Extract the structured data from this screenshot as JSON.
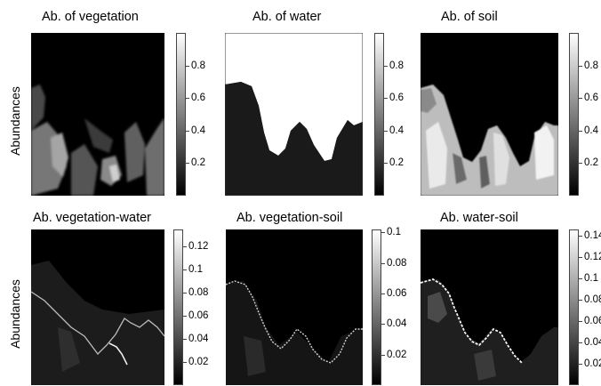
{
  "figure": {
    "row_labels": [
      "Abundances",
      "Abundances"
    ],
    "panels": [
      {
        "id": "vegetation",
        "title": "Ab. of vegetation",
        "ticks": [
          "0.8",
          "0.6",
          "0.4",
          "0.2"
        ],
        "colormap": "gray"
      },
      {
        "id": "water",
        "title": "Ab. of water",
        "ticks": [
          "0.8",
          "0.6",
          "0.4",
          "0.2"
        ],
        "colormap": "gray"
      },
      {
        "id": "soil",
        "title": "Ab. of soil",
        "ticks": [
          "0.8",
          "0.6",
          "0.4",
          "0.2"
        ],
        "colormap": "gray"
      },
      {
        "id": "vegetation-water",
        "title": "Ab. vegetation-water",
        "ticks": [
          "0.12",
          "0.1",
          "0.08",
          "0.06",
          "0.04",
          "0.02"
        ],
        "colormap": "gray"
      },
      {
        "id": "vegetation-soil",
        "title": "Ab. vegetation-soil",
        "ticks": [
          "0.1",
          "0.08",
          "0.06",
          "0.04",
          "0.02"
        ],
        "colormap": "gray"
      },
      {
        "id": "water-soil",
        "title": "Ab. water-soil",
        "ticks": [
          "0.14",
          "0.12",
          "0.1",
          "0.08",
          "0.06",
          "0.04",
          "0.02"
        ],
        "colormap": "gray"
      }
    ]
  }
}
